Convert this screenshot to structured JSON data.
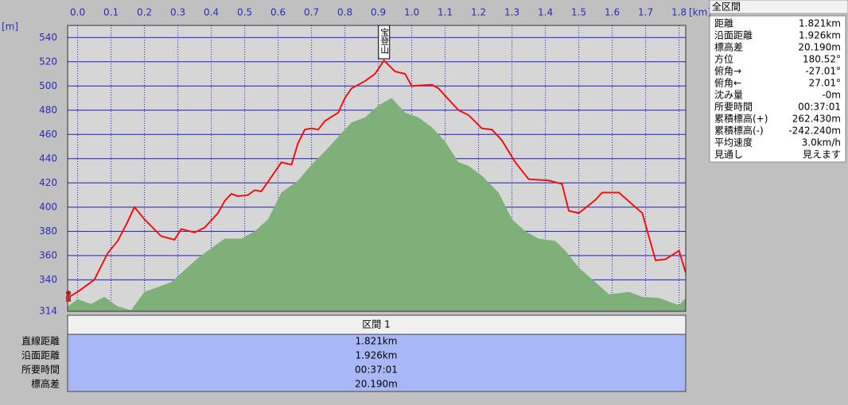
{
  "chart_data": {
    "type": "line",
    "x_label": "[km]",
    "y_label": "[m]",
    "annotation": "宝登山",
    "xlim": [
      -0.03,
      1.82
    ],
    "ylim": [
      314,
      550
    ],
    "xticks": [
      {
        "value": 0,
        "label": "0.0"
      },
      0.1,
      0.2,
      0.3,
      0.4,
      0.5,
      0.6,
      0.7,
      0.8,
      0.9,
      {
        "value": 1,
        "label": "1.0"
      },
      1.1,
      1.2,
      1.3,
      1.4,
      1.5,
      1.6,
      1.7,
      1.8
    ],
    "yticks": [
      314,
      340,
      360,
      380,
      400,
      420,
      440,
      460,
      480,
      500,
      520,
      540
    ],
    "grid": true,
    "grid_color": "#1c1cc8",
    "plot_background": "#d6d6d6",
    "series": [
      {
        "style": "area",
        "color": "#7fb07a",
        "x": [
          -0.03,
          0.0,
          0.04,
          0.08,
          0.12,
          0.16,
          0.2,
          0.24,
          0.28,
          0.32,
          0.36,
          0.41,
          0.44,
          0.49,
          0.53,
          0.57,
          0.61,
          0.66,
          0.7,
          0.74,
          0.78,
          0.82,
          0.86,
          0.9,
          0.94,
          0.98,
          1.02,
          1.06,
          1.1,
          1.14,
          1.17,
          1.21,
          1.26,
          1.3,
          1.34,
          1.38,
          1.43,
          1.46,
          1.5,
          1.55,
          1.59,
          1.65,
          1.69,
          1.74,
          1.77,
          1.8,
          1.82
        ],
        "values": [
          318,
          324,
          320,
          326,
          318,
          315,
          330,
          334,
          338,
          348,
          358,
          368,
          374,
          374,
          380,
          390,
          412,
          422,
          435,
          446,
          458,
          470,
          474,
          484,
          490,
          478,
          474,
          466,
          454,
          437,
          434,
          426,
          412,
          390,
          380,
          374,
          372,
          364,
          350,
          338,
          328,
          330,
          326,
          325,
          322,
          319,
          325
        ]
      },
      {
        "style": "line",
        "color": "#ee1111",
        "x": [
          -0.025,
          0.0,
          0.05,
          0.09,
          0.12,
          0.15,
          0.17,
          0.2,
          0.25,
          0.29,
          0.31,
          0.35,
          0.38,
          0.42,
          0.44,
          0.46,
          0.48,
          0.51,
          0.53,
          0.55,
          0.58,
          0.61,
          0.64,
          0.66,
          0.68,
          0.7,
          0.72,
          0.74,
          0.78,
          0.8,
          0.82,
          0.86,
          0.89,
          0.917,
          0.95,
          0.98,
          1.0,
          1.06,
          1.08,
          1.14,
          1.17,
          1.21,
          1.24,
          1.27,
          1.31,
          1.35,
          1.41,
          1.45,
          1.47,
          1.5,
          1.55,
          1.57,
          1.62,
          1.69,
          1.73,
          1.76,
          1.8,
          1.82
        ],
        "values": [
          326,
          330,
          340,
          362,
          372,
          388,
          400,
          390,
          376,
          373,
          382,
          379,
          383,
          395,
          405,
          411,
          409,
          410,
          414,
          413,
          425,
          437,
          435,
          453,
          464,
          465,
          464,
          471,
          478,
          490,
          498,
          504,
          510,
          521,
          512,
          510,
          500,
          501,
          498,
          480,
          476,
          465,
          464,
          455,
          437,
          423,
          422,
          419,
          397,
          395,
          406,
          412,
          412,
          395,
          356,
          357,
          364,
          346
        ]
      }
    ]
  },
  "summary": {
    "title": "全区間",
    "rows": [
      {
        "label": "距離",
        "value": "1.821km"
      },
      {
        "label": "沿面距離",
        "value": "1.926km"
      },
      {
        "label": "標高差",
        "value": "20.190m"
      },
      {
        "label": "方位",
        "value": "180.52°"
      },
      {
        "label": "俯角→",
        "value": "-27.01°"
      },
      {
        "label": "俯角←",
        "value": "27.01°"
      },
      {
        "label": "沈み量",
        "value": "-0m"
      },
      {
        "label": "所要時間",
        "value": "00:37:01"
      },
      {
        "label": "累積標高(+)",
        "value": "262.430m"
      },
      {
        "label": "累積標高(-)",
        "value": "-242.240m"
      },
      {
        "label": "平均速度",
        "value": "3.0km/h"
      },
      {
        "label": "見通し",
        "value": "見えます"
      }
    ]
  },
  "section": {
    "header": "区間 1",
    "rows": [
      {
        "label": "直線距離",
        "value": "1.821km"
      },
      {
        "label": "沿面距離",
        "value": "1.926km"
      },
      {
        "label": "所要時間",
        "value": "00:37:01"
      },
      {
        "label": "標高差",
        "value": "20.190m"
      }
    ]
  }
}
